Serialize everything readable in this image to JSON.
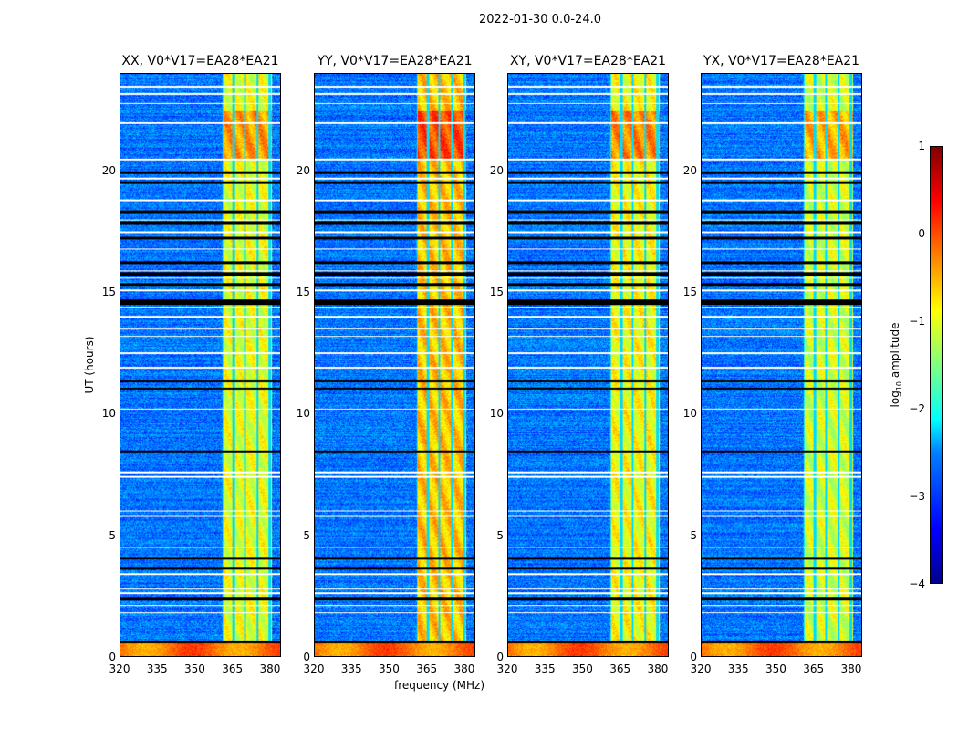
{
  "chart_data": {
    "type": "heatmap",
    "suptitle": "2022-01-30 0.0-24.0",
    "xlabel": "frequency (MHz)",
    "ylabel": "UT (hours)",
    "xlim": [
      320,
      384.4
    ],
    "ylim": [
      0,
      24
    ],
    "xticks": [
      "320",
      "335",
      "350",
      "365",
      "380"
    ],
    "xtick_values": [
      320,
      335,
      350,
      365,
      380
    ],
    "yticks": [
      "0",
      "5",
      "10",
      "15",
      "20"
    ],
    "ytick_values": [
      0,
      5,
      10,
      15,
      20
    ],
    "panels": [
      {
        "title": "XX, V0*V17=EA28*EA21",
        "band_level": -1.0
      },
      {
        "title": "YY, V0*V17=EA28*EA21",
        "band_level": -0.6
      },
      {
        "title": "XY, V0*V17=EA28*EA21",
        "band_level": -0.9
      },
      {
        "title": "YX, V0*V17=EA28*EA21",
        "band_level": -1.1
      }
    ],
    "background_level": -2.8,
    "rfi_band_mhz": [
      361,
      381
    ],
    "subband_edges_mhz": [
      361,
      365.5,
      370,
      375,
      380
    ],
    "low_time_bright_hours": [
      0,
      0.55
    ],
    "flagged_white_hours": [
      1.8,
      2.1,
      2.6,
      2.8,
      3.4,
      4.5,
      5.8,
      6.0,
      7.4,
      7.6,
      10.2,
      11.9,
      12.5,
      13.2,
      13.5,
      14.0,
      14.4,
      15.1,
      15.6,
      15.9,
      16.8,
      17.5,
      18.0,
      18.8,
      19.7,
      20.5,
      22.0,
      22.8,
      23.2,
      23.5
    ],
    "flagged_black_hours": [
      [
        0.55,
        0.65
      ],
      [
        2.3,
        2.45
      ],
      [
        3.6,
        3.7
      ],
      [
        4.0,
        4.1
      ],
      [
        8.4,
        8.5
      ],
      [
        11.0,
        11.1
      ],
      [
        11.3,
        11.4
      ],
      [
        14.5,
        14.7
      ],
      [
        15.3,
        15.4
      ],
      [
        15.7,
        15.85
      ],
      [
        16.2,
        16.3
      ],
      [
        17.2,
        17.3
      ],
      [
        17.8,
        17.95
      ],
      [
        18.3,
        18.4
      ],
      [
        19.5,
        19.6
      ],
      [
        19.9,
        20.0
      ]
    ],
    "colorbar": {
      "label": "log10 amplitude",
      "range": [
        -4,
        1
      ],
      "ticks": [
        "1",
        "0",
        "−1",
        "−2",
        "−3",
        "−4"
      ],
      "tick_values": [
        1,
        0,
        -1,
        -2,
        -3,
        -4
      ],
      "colormap": "jet"
    }
  }
}
